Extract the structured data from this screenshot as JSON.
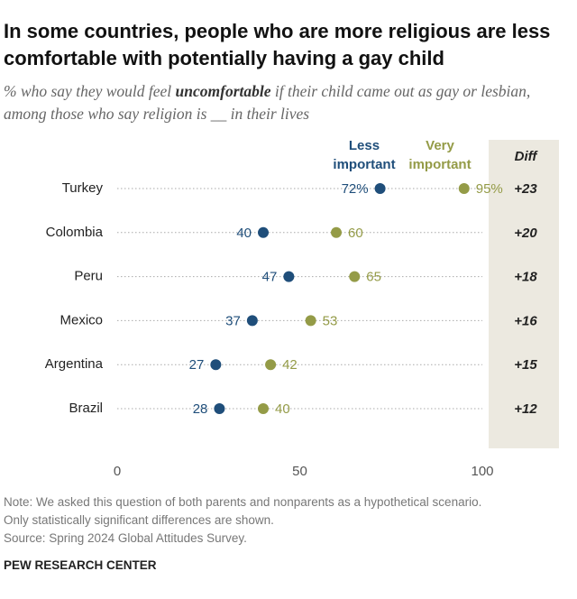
{
  "chart_data": {
    "type": "dot",
    "title": "In some countries, people who are more religious are less comfortable with potentially having a gay child",
    "subtitle": [
      "% who say they would feel ",
      "uncomfortable",
      " if their child came out as gay or lesbian, among those who say religion is __ in their lives"
    ],
    "categories": [
      "Turkey",
      "Colombia",
      "Peru",
      "Mexico",
      "Argentina",
      "Brazil"
    ],
    "series": [
      {
        "name": "Less important",
        "color": "#1f4e7a",
        "values": [
          72,
          40,
          47,
          37,
          27,
          28
        ],
        "value_labels": [
          "72%",
          "40",
          "47",
          "37",
          "27",
          "28"
        ]
      },
      {
        "name": "Very important",
        "color": "#949b47",
        "values": [
          95,
          60,
          65,
          53,
          42,
          40
        ],
        "value_labels": [
          "95%",
          "60",
          "65",
          "53",
          "42",
          "40"
        ]
      }
    ],
    "diff_header": "Diff",
    "diff": [
      "+23",
      "+20",
      "+18",
      "+16",
      "+15",
      "+12"
    ],
    "xlim": [
      0,
      100
    ],
    "xticks": [
      0,
      50,
      100
    ],
    "note": [
      "Note: We asked this question of both parents and nonparents as a hypothetical scenario.",
      "Only statistically significant differences are shown."
    ],
    "source": "Source: Spring 2024 Global Attitudes Survey.",
    "credit": "PEW RESEARCH CENTER"
  }
}
